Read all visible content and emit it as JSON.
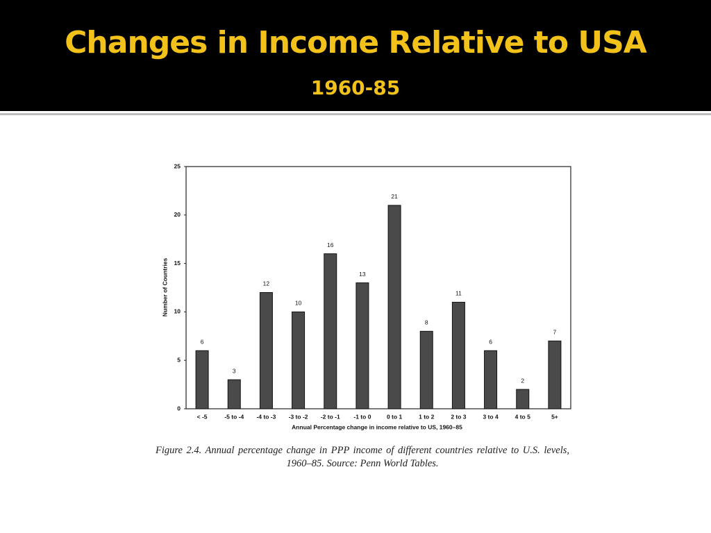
{
  "chart_data": {
    "type": "bar",
    "title": "Changes in Income Relative to USA",
    "subtitle": "1960-85",
    "categories": [
      "< -5",
      "-5 to -4",
      "-4 to -3",
      "-3 to -2",
      "-2 to -1",
      "-1 to 0",
      "0 to 1",
      "1 to 2",
      "2 to 3",
      "3 to 4",
      "4 to 5",
      "5+"
    ],
    "values": [
      6,
      3,
      12,
      10,
      16,
      13,
      21,
      8,
      11,
      6,
      2,
      7
    ],
    "color": "#4a4a4a",
    "ylim": [
      0,
      25
    ],
    "yticks": [
      0,
      5,
      10,
      15,
      20,
      25
    ],
    "ylabel": "Number of Countries",
    "xlabel": "Annual Percentage change in income relative to US, 1960–85",
    "caption": "Figure 2.4. Annual percentage change in PPP income of different countries relative to U.S. levels, 1960–85. Source: Penn World Tables."
  }
}
